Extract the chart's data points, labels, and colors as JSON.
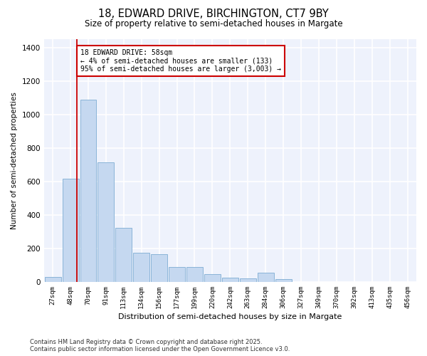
{
  "title_line1": "18, EDWARD DRIVE, BIRCHINGTON, CT7 9BY",
  "title_line2": "Size of property relative to semi-detached houses in Margate",
  "xlabel": "Distribution of semi-detached houses by size in Margate",
  "ylabel": "Number of semi-detached properties",
  "categories": [
    "27sqm",
    "48sqm",
    "70sqm",
    "91sqm",
    "113sqm",
    "134sqm",
    "156sqm",
    "177sqm",
    "199sqm",
    "220sqm",
    "242sqm",
    "263sqm",
    "284sqm",
    "306sqm",
    "327sqm",
    "349sqm",
    "370sqm",
    "392sqm",
    "413sqm",
    "435sqm",
    "456sqm"
  ],
  "values": [
    30,
    615,
    1090,
    715,
    325,
    175,
    165,
    90,
    90,
    45,
    25,
    20,
    55,
    15,
    0,
    0,
    0,
    0,
    0,
    0,
    0
  ],
  "bar_color": "#c5d8f0",
  "bar_edge_color": "#8ab4d8",
  "background_color": "#eef2fc",
  "grid_color": "#ffffff",
  "vline_color": "#cc0000",
  "annotation_text": "18 EDWARD DRIVE: 58sqm\n← 4% of semi-detached houses are smaller (133)\n95% of semi-detached houses are larger (3,003) →",
  "annotation_box_color": "#ffffff",
  "annotation_box_edge": "#cc0000",
  "ylim": [
    0,
    1450
  ],
  "yticks": [
    0,
    200,
    400,
    600,
    800,
    1000,
    1200,
    1400
  ],
  "footnote": "Contains HM Land Registry data © Crown copyright and database right 2025.\nContains public sector information licensed under the Open Government Licence v3.0."
}
